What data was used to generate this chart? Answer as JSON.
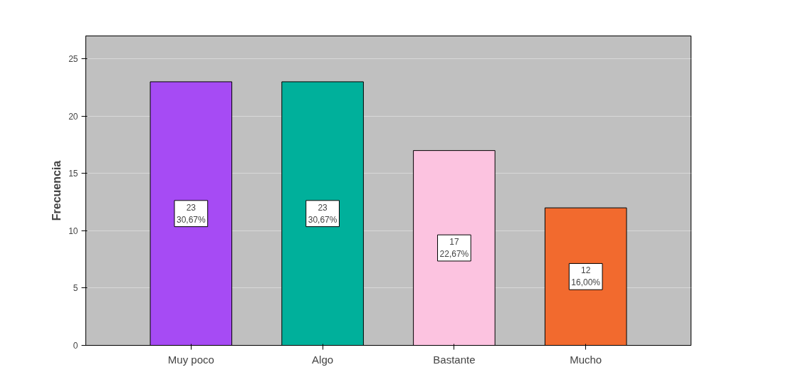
{
  "chart_data": {
    "type": "bar",
    "ylabel": "Frecuencia",
    "categories": [
      "Muy poco",
      "Algo",
      "Bastante",
      "Mucho"
    ],
    "values": [
      23,
      23,
      17,
      12
    ],
    "colors": [
      "#a64bf4",
      "#00b09b",
      "#fcc3e0",
      "#f26a2e"
    ],
    "value_labels": [
      "23\n30,67%",
      "23\n30,67%",
      "17\n22,67%",
      "12\n16,00%"
    ],
    "ylim": [
      0,
      27
    ],
    "yticks": [
      0,
      5,
      10,
      15,
      20,
      25
    ],
    "grid": "y"
  }
}
